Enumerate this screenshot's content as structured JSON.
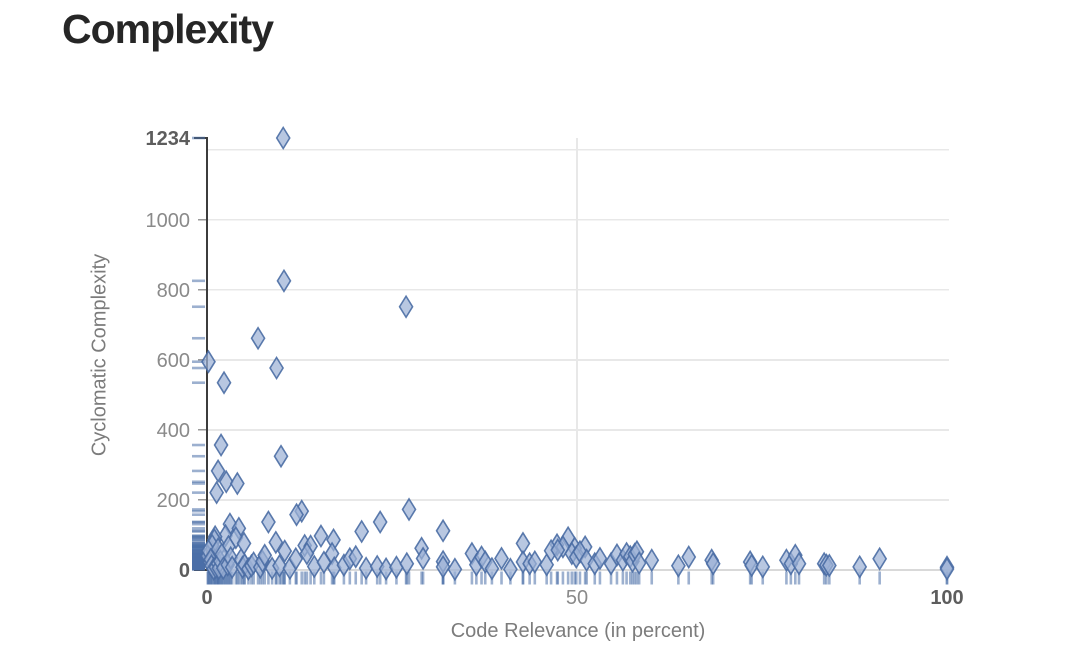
{
  "title": "Complexity",
  "chart_data": {
    "type": "scatter",
    "title": "Complexity",
    "xlabel": "Code Relevance (in percent)",
    "ylabel": "Cyclomatic Complexity",
    "xlim": [
      0,
      100
    ],
    "ylim": [
      0,
      1234
    ],
    "grid": true,
    "legend": "none",
    "marker": "diamond",
    "rug": "both-axes",
    "x_ticks": [
      {
        "value": 0,
        "label": "0",
        "bold": true
      },
      {
        "value": 50,
        "label": "50",
        "bold": false
      },
      {
        "value": 100,
        "label": "100",
        "bold": true
      }
    ],
    "y_ticks": [
      {
        "value": 0,
        "label": "0",
        "bold": true
      },
      {
        "value": 200,
        "label": "200",
        "bold": false
      },
      {
        "value": 400,
        "label": "400",
        "bold": false
      },
      {
        "value": 600,
        "label": "600",
        "bold": false
      },
      {
        "value": 800,
        "label": "800",
        "bold": false
      },
      {
        "value": 1000,
        "label": "1000",
        "bold": false
      },
      {
        "value": 1234,
        "label": "1234",
        "bold": true
      }
    ],
    "y_gridlines": [
      0,
      200,
      400,
      600,
      800,
      1000,
      1200
    ],
    "x_gridlines": [
      50
    ],
    "colors": {
      "grid": "#e8e8e8",
      "axis_dark": "#3c3c3c",
      "axis_light": "#d9d9d9",
      "rug": "#4a70a8",
      "marker_fill": "#9cb1d5",
      "marker_stroke": "#4a6da4",
      "tick_label": "#8a8a8a",
      "tick_label_bold": "#5d5d5d",
      "title": "#262626"
    },
    "points": [
      [
        10.3,
        1234
      ],
      [
        10.4,
        826
      ],
      [
        26.9,
        752
      ],
      [
        6.9,
        662
      ],
      [
        0.2,
        595
      ],
      [
        9.4,
        577
      ],
      [
        2.3,
        535
      ],
      [
        1.9,
        357
      ],
      [
        10,
        325
      ],
      [
        1.5,
        283
      ],
      [
        2.6,
        252
      ],
      [
        4.1,
        247
      ],
      [
        1.3,
        221
      ],
      [
        12.8,
        168
      ],
      [
        27.3,
        173
      ],
      [
        12.1,
        158
      ],
      [
        8.3,
        137
      ],
      [
        23.4,
        137
      ],
      [
        3.1,
        131
      ],
      [
        4.3,
        119
      ],
      [
        31.9,
        112
      ],
      [
        20.9,
        110
      ],
      [
        15.4,
        97
      ],
      [
        2.5,
        98
      ],
      [
        1.1,
        95
      ],
      [
        3.9,
        92
      ],
      [
        48.8,
        92
      ],
      [
        17.1,
        86
      ],
      [
        1,
        86
      ],
      [
        9.3,
        79
      ],
      [
        5,
        76
      ],
      [
        42.7,
        76
      ],
      [
        47.3,
        72
      ],
      [
        48.1,
        66
      ],
      [
        51.1,
        66
      ],
      [
        0.7,
        70
      ],
      [
        2.9,
        67
      ],
      [
        13.2,
        70
      ],
      [
        14,
        68
      ],
      [
        29,
        62
      ],
      [
        49.7,
        62
      ],
      [
        0.1,
        40
      ],
      [
        0.2,
        55
      ],
      [
        0.4,
        22
      ],
      [
        0.5,
        30
      ],
      [
        0.6,
        12
      ],
      [
        0.9,
        3
      ],
      [
        1.2,
        8
      ],
      [
        1.5,
        60
      ],
      [
        1.5,
        18
      ],
      [
        1.6,
        5
      ],
      [
        1.8,
        25
      ],
      [
        2,
        45
      ],
      [
        2.2,
        5
      ],
      [
        2.8,
        15
      ],
      [
        3.2,
        35
      ],
      [
        3.4,
        8
      ],
      [
        4.6,
        30
      ],
      [
        4.8,
        8
      ],
      [
        5.1,
        15
      ],
      [
        5.6,
        3
      ],
      [
        6,
        12
      ],
      [
        6.3,
        20
      ],
      [
        7.2,
        8
      ],
      [
        7.5,
        25
      ],
      [
        7.8,
        42
      ],
      [
        8.8,
        5
      ],
      [
        9.8,
        12
      ],
      [
        10.5,
        54
      ],
      [
        11.2,
        5
      ],
      [
        12,
        32
      ],
      [
        13.5,
        47
      ],
      [
        14.5,
        10
      ],
      [
        15.8,
        22
      ],
      [
        16.9,
        47
      ],
      [
        17.2,
        6
      ],
      [
        18.5,
        14
      ],
      [
        19.3,
        32
      ],
      [
        20.1,
        38
      ],
      [
        21.5,
        5
      ],
      [
        23,
        10
      ],
      [
        24.2,
        3
      ],
      [
        25.6,
        8
      ],
      [
        27,
        18
      ],
      [
        29.2,
        33
      ],
      [
        31.9,
        24
      ],
      [
        31.9,
        9
      ],
      [
        33.5,
        2
      ],
      [
        35.8,
        47
      ],
      [
        36.4,
        15
      ],
      [
        37.1,
        37
      ],
      [
        37.6,
        23
      ],
      [
        38.5,
        4
      ],
      [
        39.8,
        33
      ],
      [
        41,
        2
      ],
      [
        42.7,
        23
      ],
      [
        43.6,
        18
      ],
      [
        44.3,
        23
      ],
      [
        45.9,
        15
      ],
      [
        46.5,
        55
      ],
      [
        47.4,
        57
      ],
      [
        49.3,
        47
      ],
      [
        49.9,
        37
      ],
      [
        50.4,
        52
      ],
      [
        51.3,
        28
      ],
      [
        52.4,
        18
      ],
      [
        53.1,
        33
      ],
      [
        54.6,
        18
      ],
      [
        55.4,
        43
      ],
      [
        56.2,
        28
      ],
      [
        56.7,
        47
      ],
      [
        57.2,
        38
      ],
      [
        57.5,
        25
      ],
      [
        57.8,
        45
      ],
      [
        58.1,
        52
      ],
      [
        58.4,
        20
      ],
      [
        60.1,
        28
      ],
      [
        63.7,
        12
      ],
      [
        65.1,
        37
      ],
      [
        68.2,
        28
      ],
      [
        68.4,
        18
      ],
      [
        73.4,
        23
      ],
      [
        73.6,
        13
      ],
      [
        75.1,
        9
      ],
      [
        78.3,
        28
      ],
      [
        78.9,
        18
      ],
      [
        79.5,
        42
      ],
      [
        80,
        18
      ],
      [
        83.4,
        18
      ],
      [
        83.7,
        14
      ],
      [
        84.1,
        13
      ],
      [
        88.2,
        9
      ],
      [
        90.9,
        32
      ],
      [
        100,
        8
      ],
      [
        100,
        3
      ]
    ]
  }
}
